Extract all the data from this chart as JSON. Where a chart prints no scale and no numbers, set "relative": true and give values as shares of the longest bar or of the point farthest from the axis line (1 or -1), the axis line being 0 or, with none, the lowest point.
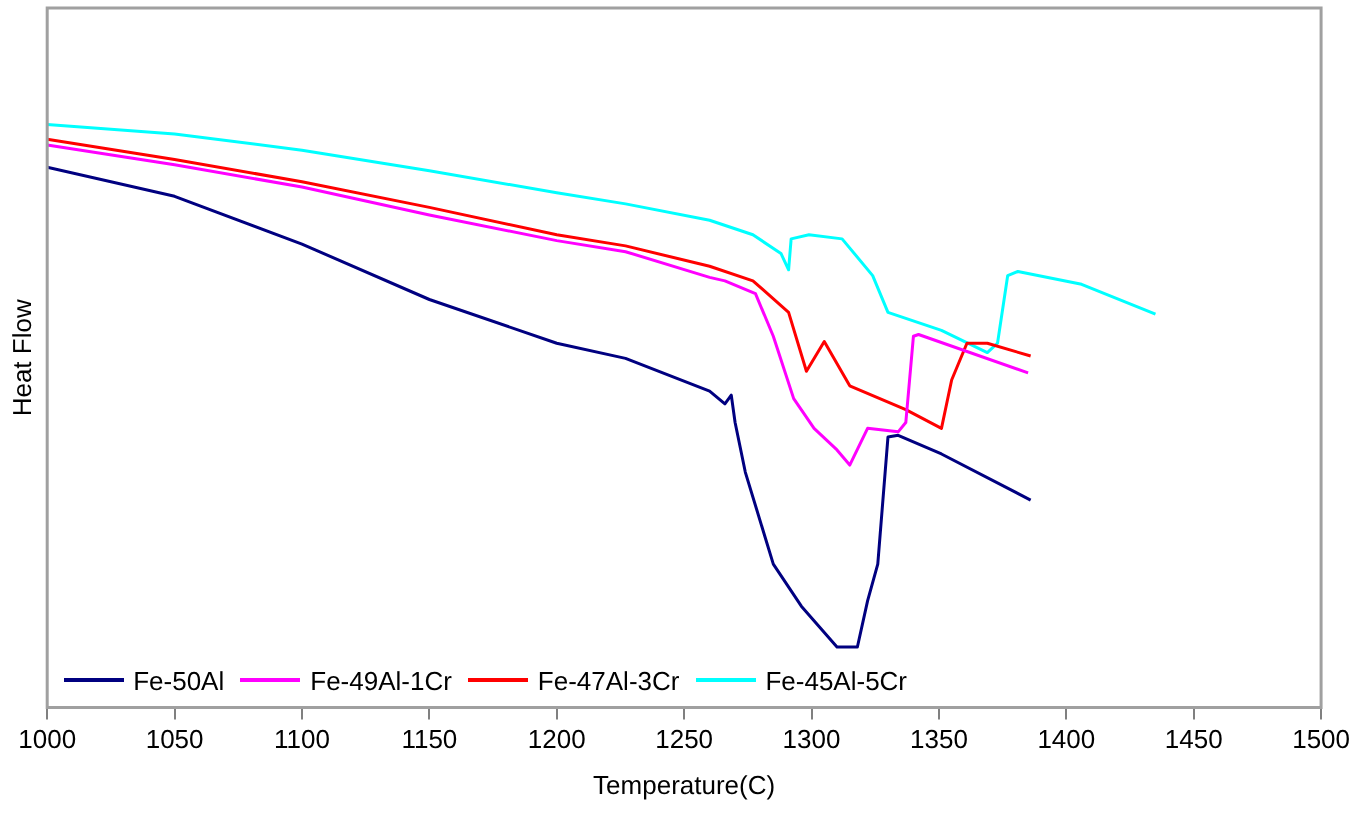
{
  "chart_data": {
    "type": "line",
    "xlabel": "Temperature(C)",
    "ylabel": "Heat Flow",
    "relative": true,
    "xlim": [
      1000,
      1500
    ],
    "xticks": [
      1000,
      1050,
      1100,
      1150,
      1200,
      1250,
      1300,
      1350,
      1400,
      1450,
      1500
    ],
    "grid": false,
    "legend": "bottom left",
    "marker": "none",
    "line_style": "solid",
    "series": [
      {
        "name": "Fe-50Al",
        "color": "#000080",
        "x": [
          1000,
          1050,
          1100,
          1150,
          1200,
          1227,
          1260,
          1266,
          1268.5,
          1270,
          1274,
          1285,
          1296,
          1310,
          1318,
          1322,
          1326,
          1330,
          1334,
          1351,
          1386
        ],
        "values": [
          0.927,
          0.877,
          0.795,
          0.7,
          0.625,
          0.599,
          0.543,
          0.521,
          0.536,
          0.489,
          0.404,
          0.246,
          0.174,
          0.104,
          0.104,
          0.183,
          0.246,
          0.464,
          0.467,
          0.435,
          0.356
        ]
      },
      {
        "name": "Fe-49Al-1Cr",
        "color": "#ff00ff",
        "x": [
          1000,
          1050,
          1100,
          1150,
          1200,
          1227,
          1260,
          1266,
          1278,
          1285,
          1293,
          1301,
          1310,
          1315,
          1322,
          1334,
          1337,
          1340,
          1342,
          1385
        ],
        "values": [
          0.965,
          0.931,
          0.893,
          0.845,
          0.801,
          0.782,
          0.738,
          0.732,
          0.71,
          0.637,
          0.53,
          0.479,
          0.442,
          0.416,
          0.479,
          0.473,
          0.489,
          0.637,
          0.64,
          0.574
        ]
      },
      {
        "name": "Fe-47Al-3Cr",
        "color": "#ff0000",
        "x": [
          1000,
          1050,
          1100,
          1150,
          1200,
          1227,
          1260,
          1277,
          1291,
          1298,
          1305,
          1315,
          1337,
          1351,
          1355,
          1361,
          1369,
          1386
        ],
        "values": [
          0.975,
          0.94,
          0.902,
          0.858,
          0.811,
          0.792,
          0.757,
          0.732,
          0.678,
          0.577,
          0.628,
          0.552,
          0.511,
          0.479,
          0.562,
          0.625,
          0.625,
          0.603
        ]
      },
      {
        "name": "Fe-45Al-5Cr",
        "color": "#00ffff",
        "x": [
          1000,
          1050,
          1100,
          1150,
          1200,
          1227,
          1260,
          1277,
          1288,
          1291,
          1292,
          1299,
          1312,
          1324,
          1330,
          1351,
          1369,
          1373,
          1377,
          1381,
          1406,
          1435
        ],
        "values": [
          1.0,
          0.984,
          0.956,
          0.921,
          0.883,
          0.864,
          0.836,
          0.811,
          0.779,
          0.751,
          0.804,
          0.811,
          0.804,
          0.741,
          0.678,
          0.647,
          0.609,
          0.625,
          0.741,
          0.748,
          0.726,
          0.675
        ]
      }
    ]
  }
}
